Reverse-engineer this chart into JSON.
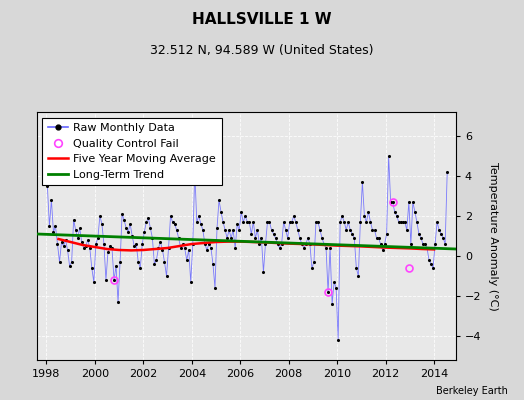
{
  "title": "HALLSVILLE 1 W",
  "subtitle": "32.512 N, 94.589 W (United States)",
  "ylabel": "Temperature Anomaly (°C)",
  "credit": "Berkeley Earth",
  "background_color": "#d8d8d8",
  "plot_bg_color": "#e8e8e8",
  "ylim": [
    -5.2,
    7.2
  ],
  "yticks": [
    -4,
    -2,
    0,
    2,
    4,
    6
  ],
  "xlim": [
    1997.6,
    2014.9
  ],
  "xticks": [
    1998,
    2000,
    2002,
    2004,
    2006,
    2008,
    2010,
    2012,
    2014
  ],
  "raw_color": "#6666ff",
  "raw_marker_color": "black",
  "qc_fail_color": "#ff44ff",
  "moving_avg_color": "red",
  "trend_color": "green",
  "raw_data": {
    "times": [
      1998.042,
      1998.125,
      1998.208,
      1998.292,
      1998.375,
      1998.458,
      1998.542,
      1998.625,
      1998.708,
      1998.792,
      1998.875,
      1998.958,
      1999.042,
      1999.125,
      1999.208,
      1999.292,
      1999.375,
      1999.458,
      1999.542,
      1999.625,
      1999.708,
      1999.792,
      1999.875,
      1999.958,
      2000.042,
      2000.125,
      2000.208,
      2000.292,
      2000.375,
      2000.458,
      2000.542,
      2000.625,
      2000.708,
      2000.792,
      2000.875,
      2000.958,
      2001.042,
      2001.125,
      2001.208,
      2001.292,
      2001.375,
      2001.458,
      2001.542,
      2001.625,
      2001.708,
      2001.792,
      2001.875,
      2001.958,
      2002.042,
      2002.125,
      2002.208,
      2002.292,
      2002.375,
      2002.458,
      2002.542,
      2002.625,
      2002.708,
      2002.792,
      2002.875,
      2002.958,
      2003.042,
      2003.125,
      2003.208,
      2003.292,
      2003.375,
      2003.458,
      2003.542,
      2003.625,
      2003.708,
      2003.792,
      2003.875,
      2003.958,
      2004.042,
      2004.125,
      2004.208,
      2004.292,
      2004.375,
      2004.458,
      2004.542,
      2004.625,
      2004.708,
      2004.792,
      2004.875,
      2004.958,
      2005.042,
      2005.125,
      2005.208,
      2005.292,
      2005.375,
      2005.458,
      2005.542,
      2005.625,
      2005.708,
      2005.792,
      2005.875,
      2005.958,
      2006.042,
      2006.125,
      2006.208,
      2006.292,
      2006.375,
      2006.458,
      2006.542,
      2006.625,
      2006.708,
      2006.792,
      2006.875,
      2006.958,
      2007.042,
      2007.125,
      2007.208,
      2007.292,
      2007.375,
      2007.458,
      2007.542,
      2007.625,
      2007.708,
      2007.792,
      2007.875,
      2007.958,
      2008.042,
      2008.125,
      2008.208,
      2008.292,
      2008.375,
      2008.458,
      2008.542,
      2008.625,
      2008.708,
      2008.792,
      2008.875,
      2008.958,
      2009.042,
      2009.125,
      2009.208,
      2009.292,
      2009.375,
      2009.458,
      2009.542,
      2009.625,
      2009.708,
      2009.792,
      2009.875,
      2009.958,
      2010.042,
      2010.125,
      2010.208,
      2010.292,
      2010.375,
      2010.458,
      2010.542,
      2010.625,
      2010.708,
      2010.792,
      2010.875,
      2010.958,
      2011.042,
      2011.125,
      2011.208,
      2011.292,
      2011.375,
      2011.458,
      2011.542,
      2011.625,
      2011.708,
      2011.792,
      2011.875,
      2011.958,
      2012.042,
      2012.125,
      2012.208,
      2012.292,
      2012.375,
      2012.458,
      2012.542,
      2012.625,
      2012.708,
      2012.792,
      2012.875,
      2012.958,
      2013.042,
      2013.125,
      2013.208,
      2013.292,
      2013.375,
      2013.458,
      2013.542,
      2013.625,
      2013.708,
      2013.792,
      2013.875,
      2013.958,
      2014.042,
      2014.125,
      2014.208,
      2014.292,
      2014.375,
      2014.458,
      2014.542
    ],
    "values": [
      3.5,
      1.5,
      2.8,
      1.2,
      1.5,
      0.6,
      -0.3,
      0.7,
      0.5,
      0.8,
      0.3,
      -0.5,
      -0.3,
      1.8,
      1.3,
      0.9,
      1.4,
      0.7,
      0.4,
      0.5,
      0.8,
      0.4,
      -0.6,
      -1.3,
      0.6,
      0.9,
      2.0,
      1.6,
      0.6,
      -1.2,
      0.2,
      0.5,
      0.4,
      -1.2,
      -0.5,
      -2.3,
      -0.3,
      2.1,
      1.8,
      1.4,
      1.2,
      1.6,
      1.0,
      0.5,
      0.6,
      -0.3,
      -0.6,
      0.6,
      1.2,
      1.7,
      1.9,
      1.4,
      0.9,
      -0.4,
      -0.2,
      0.4,
      0.7,
      0.3,
      -0.3,
      -1.0,
      0.4,
      2.0,
      1.7,
      1.6,
      1.3,
      0.9,
      0.4,
      0.6,
      0.4,
      -0.2,
      0.3,
      -1.3,
      0.6,
      4.2,
      1.7,
      2.0,
      1.6,
      1.3,
      0.6,
      0.3,
      0.6,
      0.4,
      -0.4,
      -1.6,
      1.4,
      2.8,
      2.2,
      1.7,
      1.3,
      0.9,
      1.3,
      0.9,
      1.3,
      0.4,
      1.6,
      1.3,
      2.2,
      1.7,
      2.0,
      1.7,
      1.7,
      1.1,
      1.7,
      0.9,
      1.3,
      0.6,
      0.9,
      -0.8,
      0.6,
      1.7,
      1.7,
      1.3,
      1.1,
      0.9,
      0.6,
      0.4,
      0.6,
      1.7,
      1.3,
      0.9,
      1.7,
      1.7,
      2.0,
      1.7,
      1.3,
      0.9,
      0.6,
      0.4,
      0.6,
      0.9,
      0.6,
      -0.6,
      -0.3,
      1.7,
      1.7,
      1.3,
      0.9,
      0.6,
      0.4,
      -1.8,
      0.4,
      -2.4,
      -1.3,
      -1.6,
      -4.2,
      1.7,
      2.0,
      1.7,
      1.3,
      1.7,
      1.3,
      1.1,
      0.9,
      -0.6,
      -1.0,
      1.7,
      3.7,
      2.0,
      1.7,
      2.2,
      1.7,
      1.3,
      1.3,
      0.9,
      0.9,
      0.6,
      0.3,
      0.6,
      1.1,
      5.0,
      2.7,
      2.7,
      2.2,
      2.0,
      1.7,
      1.7,
      1.7,
      1.7,
      1.3,
      2.7,
      0.6,
      2.7,
      2.2,
      1.7,
      1.1,
      0.9,
      0.6,
      0.6,
      0.4,
      -0.2,
      -0.4,
      -0.6,
      0.6,
      1.7,
      1.3,
      1.1,
      0.9,
      0.6,
      4.2
    ]
  },
  "qc_fail_points": {
    "times": [
      2000.792,
      2009.625,
      2012.292,
      2012.958
    ],
    "values": [
      -1.2,
      -1.8,
      2.7,
      -0.6
    ]
  },
  "moving_avg": {
    "times": [
      1998.5,
      1999.0,
      1999.5,
      2000.0,
      2000.5,
      2001.0,
      2001.5,
      2002.0,
      2002.5,
      2003.0,
      2003.5,
      2004.0,
      2004.5,
      2005.0,
      2005.5,
      2006.0,
      2006.5,
      2007.0,
      2007.5,
      2008.0,
      2008.5,
      2009.0,
      2009.5,
      2010.0,
      2010.5,
      2011.0,
      2011.5,
      2012.0,
      2012.5,
      2013.0,
      2013.5,
      2014.0
    ],
    "values": [
      0.85,
      0.7,
      0.55,
      0.45,
      0.35,
      0.3,
      0.28,
      0.3,
      0.35,
      0.4,
      0.5,
      0.6,
      0.65,
      0.7,
      0.72,
      0.72,
      0.7,
      0.68,
      0.65,
      0.62,
      0.6,
      0.58,
      0.55,
      0.52,
      0.5,
      0.48,
      0.45,
      0.42,
      0.4,
      0.38,
      0.35,
      0.33
    ]
  },
  "trend": {
    "times": [
      1997.6,
      2014.9
    ],
    "values": [
      1.1,
      0.35
    ]
  },
  "legend_fontsize": 8,
  "title_fontsize": 11,
  "subtitle_fontsize": 9,
  "tick_fontsize": 8,
  "ylabel_fontsize": 8
}
